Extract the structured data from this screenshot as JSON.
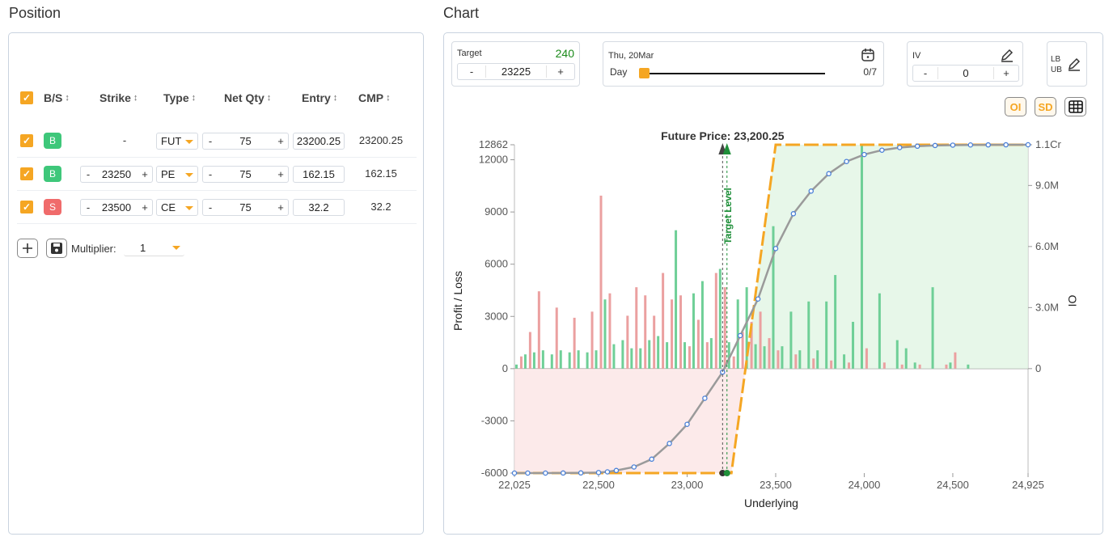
{
  "position": {
    "title": "Position",
    "headers": {
      "bs": "B/S",
      "strike": "Strike",
      "type": "Type",
      "net_qty": "Net Qty",
      "entry": "Entry",
      "cmp": "CMP",
      "sort_glyph": "↕"
    },
    "rows": [
      {
        "checked": true,
        "side": "B",
        "strike": "-",
        "type": "FUT",
        "qty": "75",
        "entry": "23200.25",
        "cmp": "23200.25"
      },
      {
        "checked": true,
        "side": "B",
        "strike": "23250",
        "type": "PE",
        "qty": "75",
        "entry": "162.15",
        "cmp": "162.15"
      },
      {
        "checked": true,
        "side": "S",
        "strike": "23500",
        "type": "CE",
        "qty": "75",
        "entry": "32.2",
        "cmp": "32.2"
      }
    ],
    "multiplier_label": "Multiplier:",
    "multiplier_value": "1"
  },
  "chart": {
    "title": "Chart",
    "target": {
      "label": "Target",
      "value": "23225",
      "pnl": "240"
    },
    "date": {
      "label": "Thu, 20Mar",
      "unit": "Day",
      "progress": "0/7",
      "progress_fraction": 0
    },
    "iv": {
      "label": "IV",
      "value": "0"
    },
    "lbub": {
      "lb": "LB",
      "ub": "UB"
    },
    "toggles": {
      "oi": "OI",
      "sd": "SD"
    },
    "minus": "-",
    "plus": "+"
  },
  "chart_data": {
    "type": "line",
    "title": "Future Price: 23,200.25",
    "target_label": "Target Level",
    "xlabel": "Underlying",
    "ylabel": "Profit / Loss",
    "y2label": "OI",
    "xlim": [
      22025,
      24925
    ],
    "ylim": [
      -6000,
      12862
    ],
    "x_ticks": [
      "22,025",
      "22,500",
      "23,000",
      "23,500",
      "24,000",
      "24,500",
      "24,925"
    ],
    "y_ticks": [
      "12862",
      "12000",
      "9000",
      "6000",
      "3000",
      "0",
      "-3000",
      "-6000"
    ],
    "y2_ticks": [
      "1.1Cr",
      "9.0M",
      "6.0M",
      "3.0M",
      "0"
    ],
    "future_price": 23200.25,
    "target_price": 23225,
    "expiry_payoff": [
      [
        22025,
        -6000
      ],
      [
        23200,
        -6000
      ],
      [
        23250,
        -6000
      ],
      [
        23500,
        12862
      ],
      [
        24925,
        12862
      ]
    ],
    "current_payoff": [
      [
        22025,
        -6000
      ],
      [
        22100,
        -6000
      ],
      [
        22200,
        -6000
      ],
      [
        22300,
        -5995
      ],
      [
        22400,
        -5990
      ],
      [
        22500,
        -5970
      ],
      [
        22550,
        -5930
      ],
      [
        22600,
        -5850
      ],
      [
        22700,
        -5650
      ],
      [
        22800,
        -5200
      ],
      [
        22900,
        -4300
      ],
      [
        23000,
        -3200
      ],
      [
        23100,
        -1700
      ],
      [
        23200,
        -200
      ],
      [
        23300,
        1900
      ],
      [
        23400,
        4000
      ],
      [
        23500,
        6900
      ],
      [
        23600,
        8900
      ],
      [
        23700,
        10200
      ],
      [
        23800,
        11200
      ],
      [
        23900,
        11900
      ],
      [
        24000,
        12300
      ],
      [
        24100,
        12550
      ],
      [
        24200,
        12700
      ],
      [
        24300,
        12780
      ],
      [
        24400,
        12820
      ],
      [
        24500,
        12840
      ],
      [
        24600,
        12850
      ],
      [
        24700,
        12855
      ],
      [
        24800,
        12860
      ],
      [
        24925,
        12862
      ]
    ],
    "oi_scale_max": 11000000,
    "call_oi": [
      [
        22075,
        600000
      ],
      [
        22125,
        1800000
      ],
      [
        22175,
        3800000
      ],
      [
        22275,
        3000000
      ],
      [
        22375,
        2500000
      ],
      [
        22475,
        2800000
      ],
      [
        22525,
        8500000
      ],
      [
        22575,
        3700000
      ],
      [
        22675,
        2600000
      ],
      [
        22725,
        4000000
      ],
      [
        22775,
        3600000
      ],
      [
        22825,
        2600000
      ],
      [
        22875,
        4700000
      ],
      [
        22925,
        3400000
      ],
      [
        22975,
        3600000
      ],
      [
        23025,
        1100000
      ],
      [
        23075,
        2400000
      ],
      [
        23125,
        1300000
      ],
      [
        23175,
        4700000
      ],
      [
        23225,
        4000000
      ],
      [
        23275,
        600000
      ],
      [
        23325,
        1800000
      ],
      [
        23375,
        2300000
      ],
      [
        23425,
        2800000
      ],
      [
        23475,
        1500000
      ],
      [
        23525,
        900000
      ],
      [
        23625,
        700000
      ],
      [
        23725,
        500000
      ],
      [
        23825,
        400000
      ],
      [
        23925,
        300000
      ],
      [
        24025,
        1000000
      ],
      [
        24125,
        300000
      ],
      [
        24225,
        200000
      ],
      [
        24325,
        200000
      ],
      [
        24475,
        200000
      ],
      [
        24525,
        800000
      ]
    ],
    "put_oi": [
      [
        22025,
        200000
      ],
      [
        22075,
        700000
      ],
      [
        22125,
        800000
      ],
      [
        22175,
        900000
      ],
      [
        22225,
        700000
      ],
      [
        22275,
        900000
      ],
      [
        22325,
        800000
      ],
      [
        22375,
        900000
      ],
      [
        22425,
        800000
      ],
      [
        22475,
        900000
      ],
      [
        22525,
        3400000
      ],
      [
        22575,
        1200000
      ],
      [
        22625,
        1400000
      ],
      [
        22675,
        1000000
      ],
      [
        22725,
        1000000
      ],
      [
        22775,
        1400000
      ],
      [
        22825,
        1600000
      ],
      [
        22875,
        1300000
      ],
      [
        22925,
        6800000
      ],
      [
        22975,
        1300000
      ],
      [
        23025,
        3700000
      ],
      [
        23075,
        4300000
      ],
      [
        23125,
        1500000
      ],
      [
        23175,
        4900000
      ],
      [
        23225,
        1300000
      ],
      [
        23275,
        3400000
      ],
      [
        23325,
        4000000
      ],
      [
        23375,
        1200000
      ],
      [
        23425,
        1100000
      ],
      [
        23475,
        7000000
      ],
      [
        23525,
        1100000
      ],
      [
        23575,
        2800000
      ],
      [
        23625,
        900000
      ],
      [
        23675,
        3300000
      ],
      [
        23725,
        900000
      ],
      [
        23775,
        3300000
      ],
      [
        23825,
        4600000
      ],
      [
        23875,
        700000
      ],
      [
        23925,
        2300000
      ],
      [
        23975,
        11000000
      ],
      [
        24075,
        3700000
      ],
      [
        24175,
        1400000
      ],
      [
        24225,
        1000000
      ],
      [
        24275,
        300000
      ],
      [
        24375,
        4000000
      ],
      [
        24475,
        300000
      ],
      [
        24575,
        200000
      ]
    ]
  }
}
